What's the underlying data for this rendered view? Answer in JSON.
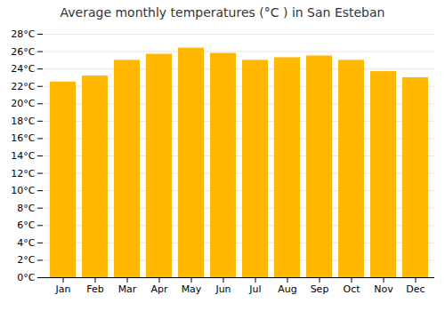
{
  "chart_data": {
    "type": "bar",
    "title": "Average monthly temperatures (°C ) in San Esteban",
    "categories": [
      "Jan",
      "Feb",
      "Mar",
      "Apr",
      "May",
      "Jun",
      "Jul",
      "Aug",
      "Sep",
      "Oct",
      "Nov",
      "Dec"
    ],
    "values": [
      22.5,
      23.2,
      25.0,
      25.7,
      26.4,
      25.8,
      25.0,
      25.3,
      25.5,
      25.0,
      23.7,
      23.0
    ],
    "color": "#FFB700",
    "ylim": [
      0,
      28
    ],
    "yticks": [
      {
        "value": 0,
        "label": "0°C"
      },
      {
        "value": 2,
        "label": "2°C"
      },
      {
        "value": 4,
        "label": "4°C"
      },
      {
        "value": 6,
        "label": "6°C"
      },
      {
        "value": 8,
        "label": "8°C"
      },
      {
        "value": 10,
        "label": "10°C"
      },
      {
        "value": 12,
        "label": "12°C"
      },
      {
        "value": 14,
        "label": "14°C"
      },
      {
        "value": 16,
        "label": "16°C"
      },
      {
        "value": 18,
        "label": "18°C"
      },
      {
        "value": 20,
        "label": "20°C"
      },
      {
        "value": 22,
        "label": "22°C"
      },
      {
        "value": 24,
        "label": "24°C"
      },
      {
        "value": 26,
        "label": "26°C"
      },
      {
        "value": 28,
        "label": "28°C"
      }
    ],
    "grid": true
  }
}
